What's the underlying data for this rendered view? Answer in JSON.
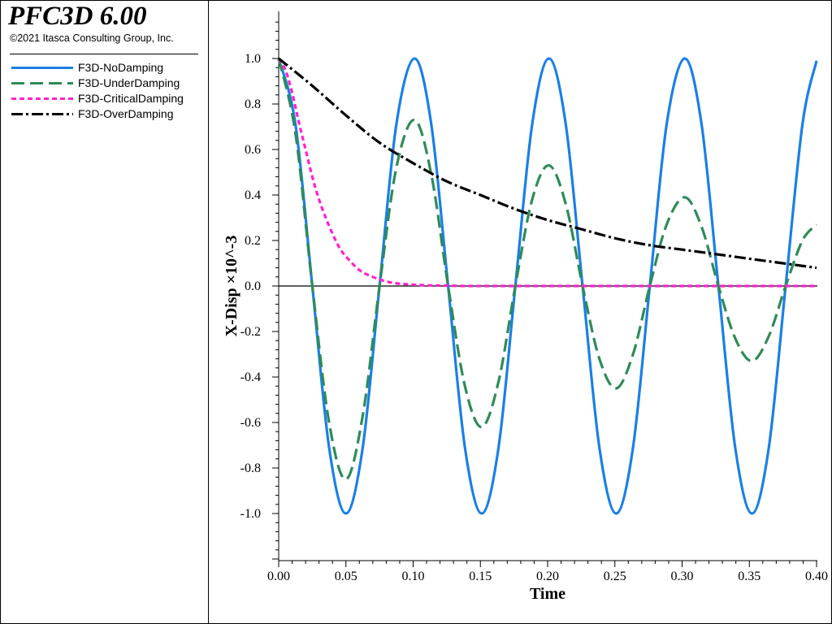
{
  "app": {
    "title": "PFC3D 6.00",
    "copyright": "©2021 Itasca Consulting Group, Inc."
  },
  "legend": [
    {
      "label": "F3D-NoDamping",
      "color": "#1a7fe6",
      "dash": "solid"
    },
    {
      "label": "F3D-UnderDamping",
      "color": "#2e8b57",
      "dash": "long-dash"
    },
    {
      "label": "F3D-CriticalDamping",
      "color": "#ff22cc",
      "dash": "short-dash"
    },
    {
      "label": "F3D-OverDamping",
      "color": "#000000",
      "dash": "dash-dot"
    }
  ],
  "chart_data": {
    "type": "line",
    "xlabel": "Time",
    "ylabel": "X-Disp ×10^-3",
    "xlim": [
      0.0,
      0.4
    ],
    "ylim": [
      -1.2,
      1.2
    ],
    "x_ticks": [
      "0.00",
      "0.05",
      "0.10",
      "0.15",
      "0.20",
      "0.25",
      "0.30",
      "0.35",
      "0.40"
    ],
    "y_ticks": [
      "1.0",
      "0.8",
      "0.6",
      "0.4",
      "0.2",
      "0.0",
      "-0.2",
      "-0.4",
      "-0.6",
      "-0.8",
      "-1.0"
    ],
    "grid": false,
    "legend_position": "left panel",
    "series": [
      {
        "name": "F3D-NoDamping",
        "color": "#1a7fe6",
        "x": [
          0.0,
          0.0125,
          0.025,
          0.0375,
          0.05,
          0.0625,
          0.075,
          0.0875,
          0.101,
          0.1135,
          0.126,
          0.1385,
          0.151,
          0.1635,
          0.176,
          0.1885,
          0.201,
          0.2135,
          0.226,
          0.2385,
          0.251,
          0.2635,
          0.276,
          0.2885,
          0.302,
          0.3145,
          0.327,
          0.3395,
          0.352,
          0.3645,
          0.377,
          0.3895,
          0.4
        ],
        "y": [
          1.0,
          0.71,
          0.0,
          -0.71,
          -1.0,
          -0.71,
          0.0,
          0.71,
          1.0,
          0.71,
          0.0,
          -0.71,
          -1.0,
          -0.71,
          0.0,
          0.71,
          1.0,
          0.71,
          0.0,
          -0.71,
          -1.0,
          -0.71,
          0.0,
          0.71,
          1.0,
          0.71,
          0.0,
          -0.71,
          -1.0,
          -0.71,
          0.0,
          0.71,
          0.99
        ]
      },
      {
        "name": "F3D-UnderDamping",
        "color": "#2e8b57",
        "x": [
          0.0,
          0.0125,
          0.025,
          0.0375,
          0.05,
          0.0625,
          0.075,
          0.0875,
          0.101,
          0.1135,
          0.126,
          0.1385,
          0.151,
          0.1635,
          0.176,
          0.1885,
          0.201,
          0.2135,
          0.226,
          0.2385,
          0.251,
          0.2635,
          0.276,
          0.2885,
          0.302,
          0.3145,
          0.327,
          0.3395,
          0.352,
          0.3645,
          0.377,
          0.3895,
          0.4
        ],
        "y": [
          1.0,
          0.67,
          0.0,
          -0.6,
          -0.85,
          -0.57,
          0.0,
          0.52,
          0.73,
          0.49,
          0.0,
          -0.44,
          -0.62,
          -0.42,
          0.0,
          0.38,
          0.53,
          0.36,
          0.0,
          -0.32,
          -0.45,
          -0.3,
          0.0,
          0.27,
          0.39,
          0.26,
          0.0,
          -0.23,
          -0.33,
          -0.22,
          0.0,
          0.2,
          0.27
        ]
      },
      {
        "name": "F3D-CriticalDamping",
        "color": "#ff22cc",
        "x": [
          0.0,
          0.005,
          0.01,
          0.015,
          0.02,
          0.025,
          0.03,
          0.035,
          0.04,
          0.045,
          0.05,
          0.06,
          0.07,
          0.08,
          0.09,
          0.1,
          0.11,
          0.12,
          0.14,
          0.16,
          0.2,
          0.25,
          0.3,
          0.35,
          0.4
        ],
        "y": [
          1.0,
          0.95,
          0.85,
          0.72,
          0.6,
          0.48,
          0.38,
          0.3,
          0.23,
          0.17,
          0.13,
          0.07,
          0.04,
          0.02,
          0.01,
          0.006,
          0.003,
          0.002,
          0.0,
          0.0,
          0.0,
          0.0,
          0.0,
          0.0,
          0.0
        ]
      },
      {
        "name": "F3D-OverDamping",
        "color": "#000000",
        "x": [
          0.0,
          0.025,
          0.05,
          0.075,
          0.1,
          0.125,
          0.15,
          0.175,
          0.2,
          0.225,
          0.25,
          0.275,
          0.3,
          0.325,
          0.35,
          0.375,
          0.4
        ],
        "y": [
          1.0,
          0.88,
          0.75,
          0.63,
          0.54,
          0.46,
          0.4,
          0.34,
          0.29,
          0.25,
          0.21,
          0.18,
          0.16,
          0.14,
          0.12,
          0.1,
          0.08
        ]
      }
    ]
  }
}
